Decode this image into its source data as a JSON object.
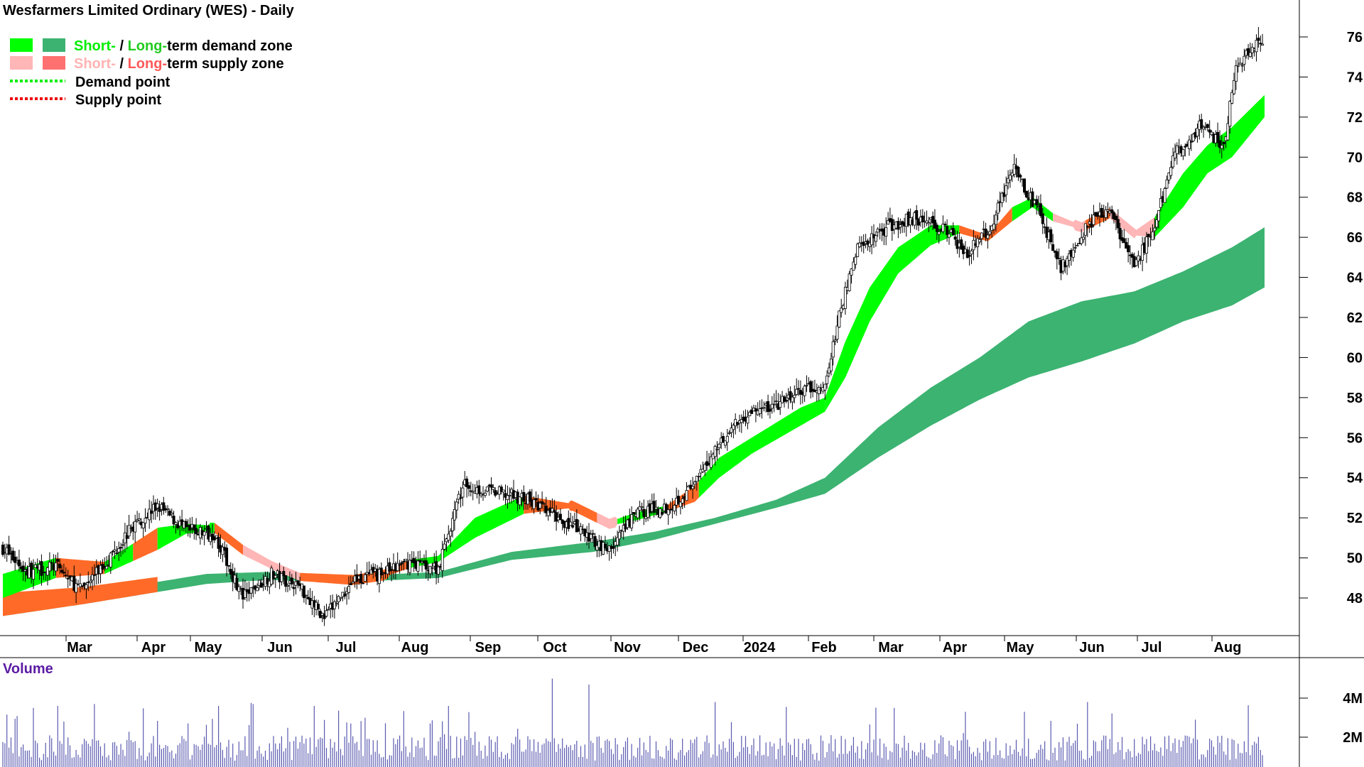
{
  "chart_data": {
    "type": "candlestick",
    "title": "Wesfarmers Limited Ordinary (WES) - Daily",
    "legend": {
      "placement": "top-left",
      "entries": [
        {
          "parts": [
            "Short-",
            " / ",
            "Long-",
            "term demand zone"
          ],
          "colors": [
            "#00ee00",
            "#000000",
            "#22cc22",
            "#000000"
          ],
          "swatches": [
            "#00ff00",
            "#3cb371"
          ]
        },
        {
          "parts": [
            "Short-",
            " / ",
            "Long-",
            "term supply zone"
          ],
          "colors": [
            "#ffb3b3",
            "#000000",
            "#ff5a5a",
            "#000000"
          ],
          "swatches": [
            "#ffb6b6",
            "#ff7070"
          ]
        },
        {
          "label": "Demand point",
          "line_color": "#00ee00"
        },
        {
          "label": "Supply point",
          "line_color": "#ee0000"
        }
      ]
    },
    "x_labels": [
      "Mar",
      "Apr",
      "May",
      "Jun",
      "Jul",
      "Aug",
      "Sep",
      "Oct",
      "Nov",
      "Dec",
      "2024",
      "Feb",
      "Mar",
      "Apr",
      "May",
      "Jun",
      "Jul",
      "Aug"
    ],
    "y_ticks": [
      "48",
      "50",
      "52",
      "54",
      "56",
      "58",
      "60",
      "62",
      "64",
      "66",
      "68",
      "70",
      "72",
      "74",
      "76"
    ],
    "ylim": [
      46,
      79
    ],
    "volume": {
      "label": "Volume",
      "ticks": [
        "2M",
        "4M"
      ],
      "ylim": [
        0,
        5.2
      ]
    },
    "price_path": [
      [
        0,
        50.5
      ],
      [
        12,
        49.3
      ],
      [
        26,
        49.6
      ],
      [
        38,
        48.4
      ],
      [
        50,
        49.7
      ],
      [
        64,
        51.6
      ],
      [
        76,
        52.6
      ],
      [
        90,
        51.4
      ],
      [
        104,
        51.2
      ],
      [
        118,
        48.0
      ],
      [
        132,
        49.2
      ],
      [
        146,
        48.6
      ],
      [
        158,
        47.0
      ],
      [
        172,
        48.9
      ],
      [
        186,
        49.2
      ],
      [
        200,
        49.8
      ],
      [
        214,
        49.5
      ],
      [
        226,
        53.6
      ],
      [
        240,
        53.3
      ],
      [
        256,
        53.0
      ],
      [
        270,
        52.2
      ],
      [
        284,
        51.3
      ],
      [
        298,
        50.4
      ],
      [
        312,
        52.3
      ],
      [
        326,
        52.5
      ],
      [
        340,
        53.6
      ],
      [
        352,
        55.8
      ],
      [
        366,
        57.2
      ],
      [
        380,
        57.6
      ],
      [
        392,
        58.3
      ],
      [
        404,
        58.5
      ],
      [
        412,
        62.5
      ],
      [
        420,
        65.5
      ],
      [
        434,
        66.5
      ],
      [
        448,
        67.0
      ],
      [
        462,
        66.5
      ],
      [
        474,
        65.2
      ],
      [
        486,
        66.6
      ],
      [
        496,
        69.5
      ],
      [
        508,
        67.5
      ],
      [
        520,
        64.5
      ],
      [
        532,
        66.5
      ],
      [
        544,
        67.4
      ],
      [
        556,
        64.5
      ],
      [
        566,
        66.5
      ],
      [
        576,
        70.2
      ],
      [
        588,
        71.5
      ],
      [
        600,
        70.5
      ],
      [
        606,
        74.5
      ],
      [
        620,
        76.0
      ]
    ],
    "short_term_zone": {
      "upper": [
        [
          0,
          49.2
        ],
        [
          26,
          50.0
        ],
        [
          50,
          49.8
        ],
        [
          76,
          51.5
        ],
        [
          90,
          51.7
        ],
        [
          104,
          51.6
        ],
        [
          118,
          50.5
        ],
        [
          132,
          49.7
        ],
        [
          146,
          49.1
        ],
        [
          172,
          49.0
        ],
        [
          186,
          49.2
        ],
        [
          200,
          49.9
        ],
        [
          214,
          50.1
        ],
        [
          232,
          52.0
        ],
        [
          256,
          53.1
        ],
        [
          280,
          52.7
        ],
        [
          298,
          51.8
        ],
        [
          312,
          52.3
        ],
        [
          326,
          52.6
        ],
        [
          340,
          53.6
        ],
        [
          352,
          55.0
        ],
        [
          368,
          56.0
        ],
        [
          392,
          57.5
        ],
        [
          404,
          58.0
        ],
        [
          414,
          60.8
        ],
        [
          426,
          63.5
        ],
        [
          440,
          65.5
        ],
        [
          456,
          66.6
        ],
        [
          470,
          66.6
        ],
        [
          484,
          66.1
        ],
        [
          496,
          67.5
        ],
        [
          506,
          68.0
        ],
        [
          516,
          67.2
        ],
        [
          530,
          66.6
        ],
        [
          544,
          67.3
        ],
        [
          556,
          66.3
        ],
        [
          566,
          67.0
        ],
        [
          580,
          69.2
        ],
        [
          592,
          70.6
        ],
        [
          604,
          71.5
        ],
        [
          620,
          73.1
        ]
      ],
      "lower": [
        [
          0,
          48.0
        ],
        [
          26,
          49.0
        ],
        [
          50,
          49.2
        ],
        [
          76,
          50.4
        ],
        [
          90,
          51.2
        ],
        [
          104,
          51.4
        ],
        [
          118,
          50.3
        ],
        [
          132,
          49.6
        ],
        [
          146,
          49.0
        ],
        [
          172,
          48.8
        ],
        [
          186,
          49.0
        ],
        [
          200,
          49.5
        ],
        [
          214,
          49.8
        ],
        [
          232,
          51.0
        ],
        [
          256,
          52.2
        ],
        [
          280,
          52.5
        ],
        [
          298,
          51.6
        ],
        [
          312,
          51.9
        ],
        [
          326,
          52.3
        ],
        [
          340,
          52.8
        ],
        [
          352,
          54.0
        ],
        [
          368,
          55.2
        ],
        [
          392,
          56.6
        ],
        [
          404,
          57.3
        ],
        [
          414,
          59.0
        ],
        [
          426,
          61.8
        ],
        [
          440,
          64.2
        ],
        [
          456,
          65.6
        ],
        [
          470,
          66.2
        ],
        [
          484,
          65.8
        ],
        [
          496,
          66.8
        ],
        [
          506,
          67.5
        ],
        [
          516,
          66.8
        ],
        [
          530,
          66.4
        ],
        [
          544,
          67.1
        ],
        [
          556,
          66.1
        ],
        [
          566,
          66.0
        ],
        [
          580,
          67.5
        ],
        [
          592,
          69.2
        ],
        [
          604,
          70.0
        ],
        [
          620,
          72.0
        ]
      ]
    },
    "long_term_zone": {
      "upper": [
        [
          0,
          48.0
        ],
        [
          40,
          48.3
        ],
        [
          76,
          48.8
        ],
        [
          100,
          49.2
        ],
        [
          130,
          49.3
        ],
        [
          172,
          49.1
        ],
        [
          214,
          49.3
        ],
        [
          250,
          50.3
        ],
        [
          290,
          50.8
        ],
        [
          320,
          51.3
        ],
        [
          350,
          52.0
        ],
        [
          380,
          52.9
        ],
        [
          404,
          54.0
        ],
        [
          430,
          56.5
        ],
        [
          456,
          58.5
        ],
        [
          480,
          60.0
        ],
        [
          504,
          61.8
        ],
        [
          530,
          62.8
        ],
        [
          556,
          63.3
        ],
        [
          580,
          64.3
        ],
        [
          604,
          65.5
        ],
        [
          620,
          66.5
        ]
      ],
      "lower": [
        [
          0,
          47.1
        ],
        [
          40,
          47.7
        ],
        [
          76,
          48.3
        ],
        [
          100,
          48.7
        ],
        [
          130,
          48.9
        ],
        [
          172,
          48.8
        ],
        [
          214,
          49.0
        ],
        [
          250,
          49.9
        ],
        [
          290,
          50.3
        ],
        [
          320,
          50.9
        ],
        [
          350,
          51.7
        ],
        [
          380,
          52.5
        ],
        [
          404,
          53.2
        ],
        [
          430,
          55.0
        ],
        [
          456,
          56.6
        ],
        [
          480,
          57.9
        ],
        [
          504,
          59.0
        ],
        [
          530,
          59.8
        ],
        [
          556,
          60.7
        ],
        [
          580,
          61.8
        ],
        [
          604,
          62.6
        ],
        [
          620,
          63.5
        ]
      ]
    },
    "zone_colors": {
      "short_demand": "#00ff00",
      "short_supply": "#ffb6b6",
      "long_demand": "#3cb371",
      "long_supply": "#ff6a3a",
      "orange": "#ff6a28"
    }
  }
}
